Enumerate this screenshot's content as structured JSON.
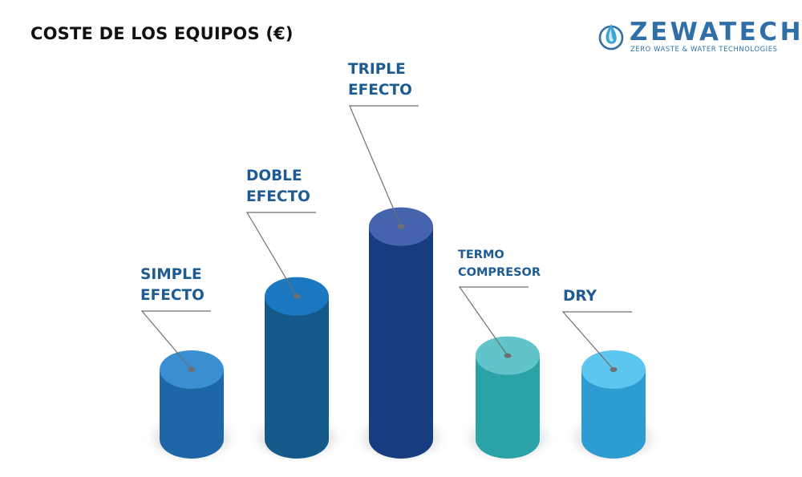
{
  "header": {
    "title": "COSTE DE LOS EQUIPOS (€)"
  },
  "brand": {
    "wordmark": "ZEWATECH",
    "tagline": "ZERO WASTE & WATER TECHNOLOGIES",
    "icon": "water-drop-icon",
    "color": "#2f6fa5"
  },
  "chart_data": {
    "type": "bar",
    "title": "COSTE DE LOS EQUIPOS (€)",
    "categories": [
      {
        "lines": [
          "SIMPLE",
          "EFECTO"
        ]
      },
      {
        "lines": [
          "DOBLE",
          "EFECTO"
        ]
      },
      {
        "lines": [
          "TRIPLE",
          "EFECTO"
        ]
      },
      {
        "lines": [
          "TERMO",
          "COMPRESOR"
        ]
      },
      {
        "lines": [
          "DRY"
        ]
      }
    ],
    "values": [
      1.0,
      2.05,
      3.05,
      1.2,
      1.0
    ],
    "value_unit": "relative height",
    "colors": {
      "body": [
        "#1e66a6",
        "#14598a",
        "#173c80",
        "#2aa3a6",
        "#2d9cd2"
      ],
      "top": [
        "#3a8fd0",
        "#1b78c0",
        "#4664ad",
        "#62c4cb",
        "#5cc6ef"
      ]
    },
    "grid": false,
    "legend": "none"
  }
}
